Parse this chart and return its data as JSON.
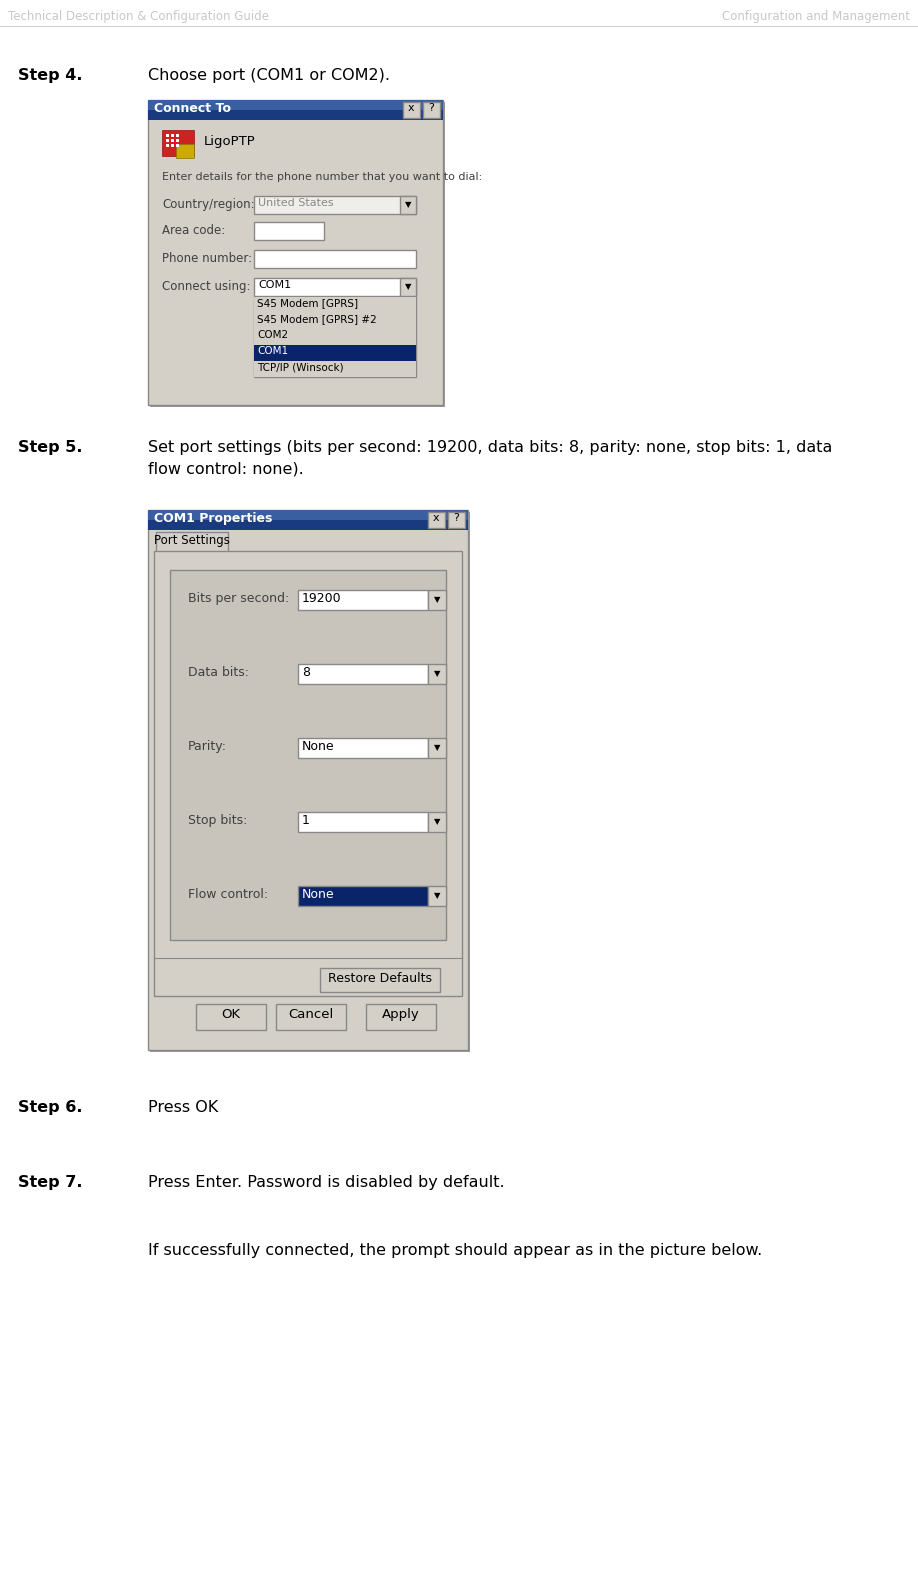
{
  "header_left": "Technical Description & Configuration Guide",
  "header_right": "Configuration and Management",
  "header_color": "#c8c8c8",
  "bg_color": "#ffffff",
  "step4_label": "Step 4.",
  "step4_text": "Choose port (COM1 or COM2).",
  "step5_label": "Step 5.",
  "step5_text_line1": "Set port settings (bits per second: 19200, data bits: 8, parity: none, stop bits: 1, data",
  "step5_text_line2": "flow control: none).",
  "step6_label": "Step 6.",
  "step6_text": "Press OK",
  "step7_label": "Step 7.",
  "step7_text": "Press Enter. Password is disabled by default.",
  "step7_subtext": "If successfully connected, the prompt should appear as in the picture below.",
  "dialog1_title": "Connect To",
  "dialog1_bg": "#d4d0c8",
  "dialog1_title_bg_top": "#4a6faf",
  "dialog1_title_bg_bot": "#1a3a8a",
  "dialog2_title": "COM1 Properties",
  "dialog2_bg": "#d4d0c8",
  "field_bg": "#ffffff",
  "selected_bg": "#0a246a",
  "selected_fg": "#ffffff",
  "title_text_color": "#ffffff",
  "btn_bg": "#d4d0c8",
  "inner_panel_bg": "#c8c4bc"
}
